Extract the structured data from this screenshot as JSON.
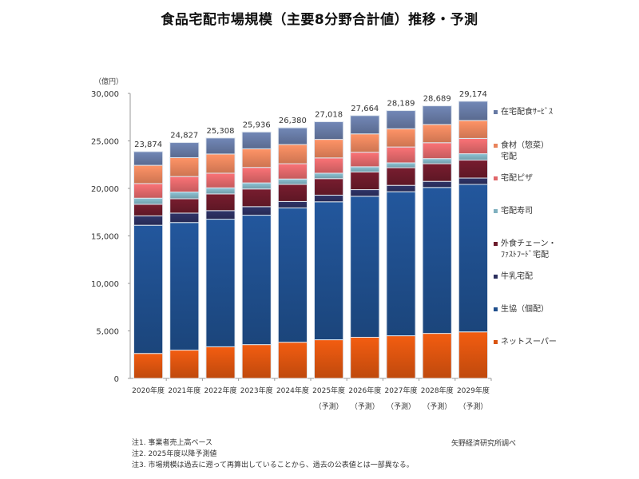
{
  "title": "食品宅配市場規模（主要8分野合計値）推移・予測",
  "unit_label": "（億円）",
  "notes": [
    "注1. 事業者売上高ベース",
    "注2. 2025年度以降予測値",
    "注3. 市場規模は過去に遡って再算出していることから、過去の公表値とは一部異なる。"
  ],
  "source": "矢野経済研究所調べ",
  "chart_data": {
    "type": "bar",
    "stacked": true,
    "title": "食品宅配市場規模（主要8分野合計値）推移・予測",
    "xlabel": "",
    "ylabel": "（億円）",
    "ylim": [
      0,
      30000
    ],
    "yticks": [
      0,
      5000,
      10000,
      15000,
      20000,
      25000,
      30000
    ],
    "ytick_labels": [
      "0",
      "5,000",
      "10,000",
      "15,000",
      "20,000",
      "25,000",
      "30,000"
    ],
    "grid": false,
    "legend_position": "right",
    "categories": [
      "2020年度",
      "2021年度",
      "2022年度",
      "2023年度",
      "2024年度",
      "2025年度",
      "2026年度",
      "2027年度",
      "2028年度",
      "2029年度"
    ],
    "category_sublabels": [
      "",
      "",
      "",
      "",
      "",
      "（予測）",
      "（予測）",
      "（予測）",
      "（予測）",
      "（予測）"
    ],
    "totals": [
      23874,
      24827,
      25308,
      25936,
      26380,
      27018,
      27664,
      28189,
      28689,
      29174
    ],
    "total_labels": [
      "23,874",
      "24,827",
      "25,308",
      "25,936",
      "26,380",
      "27,018",
      "27,664",
      "28,189",
      "28,689",
      "29,174"
    ],
    "series": [
      {
        "name": "ネットスーパー",
        "color": "#d9530f",
        "values": [
          2630,
          2980,
          3330,
          3560,
          3810,
          4070,
          4330,
          4490,
          4740,
          4900
        ]
      },
      {
        "name": "生協（個配）",
        "color": "#1f4e8c",
        "values": [
          13490,
          13430,
          13430,
          13620,
          14140,
          14520,
          14840,
          15160,
          15360,
          15520
        ]
      },
      {
        "name": "牛乳宅配",
        "color": "#2b2f5e",
        "values": [
          990,
          990,
          900,
          900,
          670,
          700,
          700,
          670,
          640,
          670
        ]
      },
      {
        "name": "外食チェーン・ファストフード宅配",
        "color": "#6b1a2a",
        "values": [
          1220,
          1510,
          1760,
          1860,
          1800,
          1740,
          1860,
          1860,
          1860,
          1890
        ]
      },
      {
        "name": "宅配寿司",
        "color": "#7fb0bf",
        "values": [
          640,
          710,
          640,
          640,
          570,
          570,
          550,
          510,
          540,
          670
        ]
      },
      {
        "name": "宅配ピザ",
        "color": "#e0676a",
        "values": [
          1540,
          1630,
          1540,
          1630,
          1610,
          1610,
          1530,
          1670,
          1670,
          1610
        ]
      },
      {
        "name": "食材（惣菜）宅配",
        "color": "#e9845c",
        "values": [
          1920,
          1990,
          2020,
          1960,
          2020,
          1950,
          1930,
          1920,
          1920,
          1890
        ]
      },
      {
        "name": "在宅配食サービス",
        "color": "#6679a3",
        "values": [
          1444,
          1587,
          1688,
          1766,
          1760,
          1858,
          1924,
          1909,
          1959,
          2024
        ]
      }
    ]
  },
  "legend": [
    {
      "label": "在宅配食ｻｰﾋﾞｽ",
      "label2": "",
      "color": "#6679a3"
    },
    {
      "label": "食材（惣菜）",
      "label2": "宅配",
      "color": "#e9845c"
    },
    {
      "label": "宅配ピザ",
      "label2": "",
      "color": "#e0676a"
    },
    {
      "label": "宅配寿司",
      "label2": "",
      "color": "#7fb0bf"
    },
    {
      "label": "外食チェーン・",
      "label2": "ﾌｧｽﾄﾌｰﾄﾞ宅配",
      "color": "#6b1a2a"
    },
    {
      "label": "牛乳宅配",
      "label2": "",
      "color": "#2b2f5e"
    },
    {
      "label": "生協（個配）",
      "label2": "",
      "color": "#1f4e8c"
    },
    {
      "label": "ネットスーパー",
      "label2": "",
      "color": "#d9530f"
    }
  ]
}
